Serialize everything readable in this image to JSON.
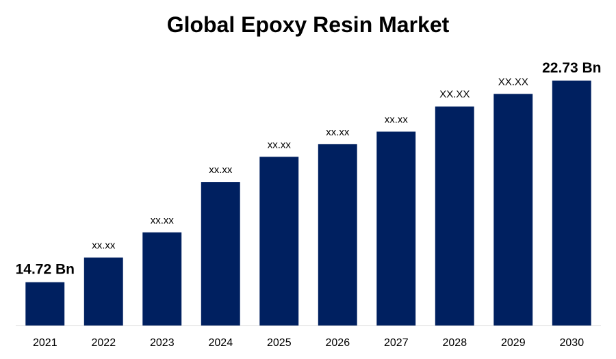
{
  "chart_data": {
    "type": "bar",
    "title": "Global Epoxy Resin Market",
    "xlabel": "",
    "ylabel": "",
    "categories": [
      "2021",
      "2022",
      "2023",
      "2024",
      "2025",
      "2026",
      "2027",
      "2028",
      "2029",
      "2030"
    ],
    "values": [
      14.72,
      15.7,
      16.7,
      18.7,
      19.7,
      20.2,
      20.7,
      21.7,
      22.2,
      22.73
    ],
    "data_labels": [
      "14.72 Bn",
      "xx.xx",
      "xx.xx",
      "xx.xx",
      "xx.xx",
      "xx.xx",
      "xx.xx",
      "XX.XX",
      "XX.XX",
      "22.73 Bn"
    ],
    "ylim": [
      13.0,
      24.0
    ],
    "grid": false,
    "legend": "none",
    "bar_color": "#002060",
    "baseline_color": "#d9d9d9"
  }
}
